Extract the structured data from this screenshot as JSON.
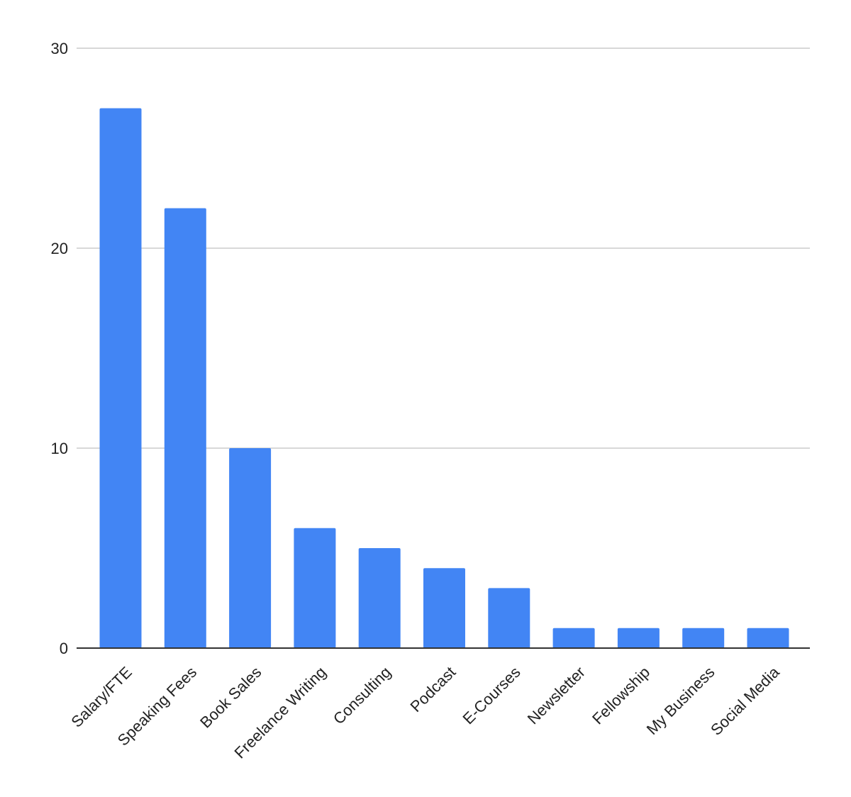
{
  "chart_data": {
    "type": "bar",
    "title": "",
    "xlabel": "",
    "ylabel": "",
    "categories": [
      "Salary/FTE",
      "Speaking Fees",
      "Book Sales",
      "Freelance Writing",
      "Consulting",
      "Podcast",
      "E-Courses",
      "Newsletter",
      "Fellowship",
      "My Business",
      "Social Media"
    ],
    "values": [
      27,
      22,
      10,
      6,
      5,
      4,
      3,
      1,
      1,
      1,
      1
    ],
    "ylim": [
      0,
      30
    ],
    "yticks": [
      "0",
      "10",
      "20",
      "30"
    ],
    "grid": true,
    "bar_color": "#4285f4",
    "legend": "none"
  }
}
